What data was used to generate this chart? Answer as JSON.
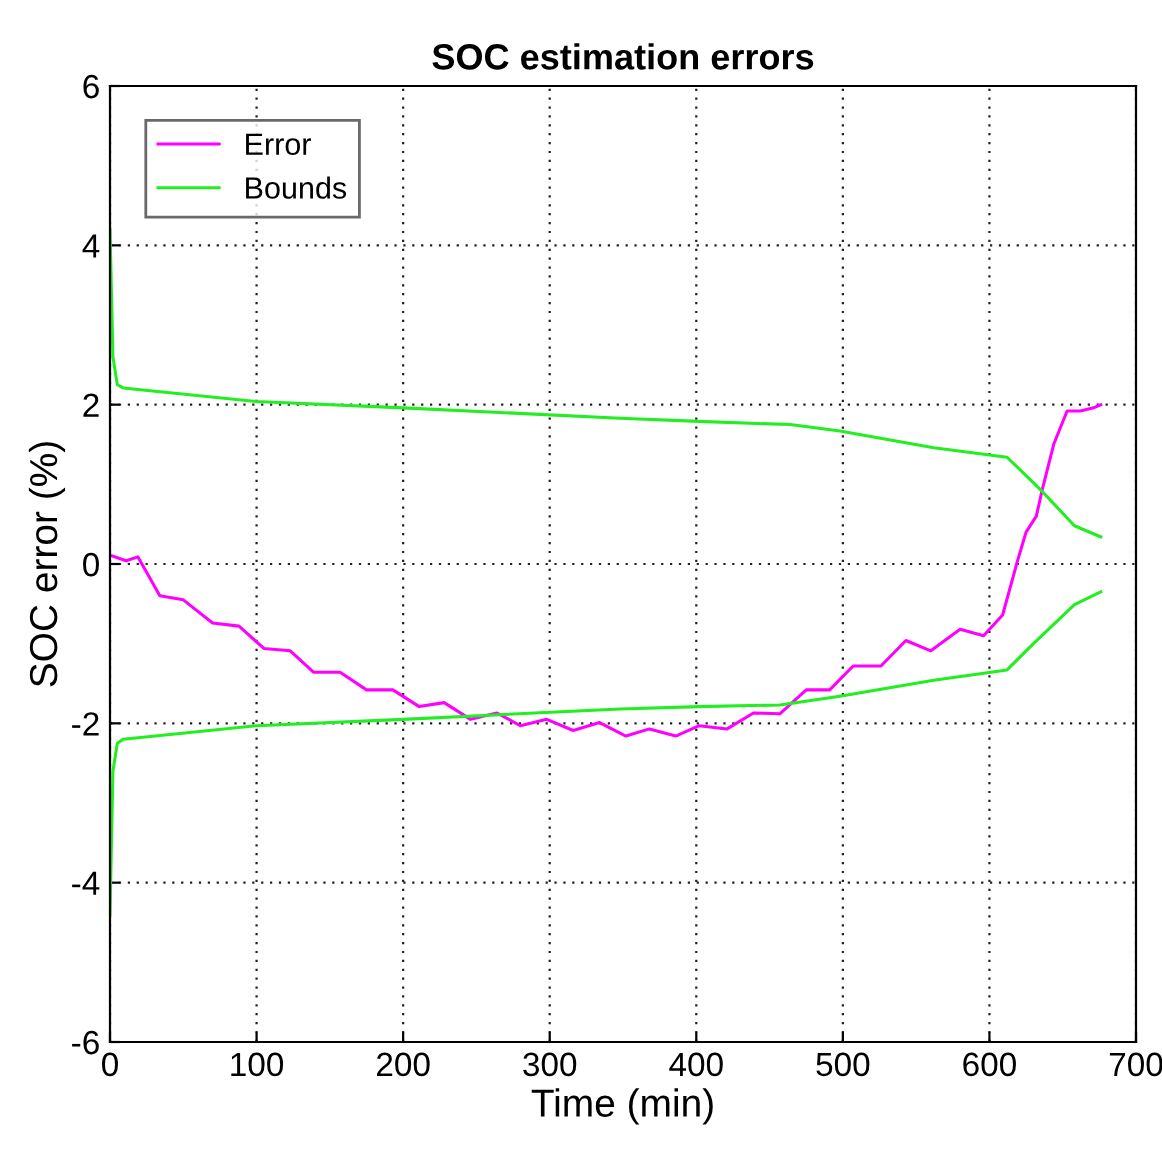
{
  "chart_data": {
    "type": "line",
    "title": "SOC estimation errors",
    "xlabel": "Time (min)",
    "ylabel": "SOC error (%)",
    "xlim": [
      0,
      700
    ],
    "xticks": [
      0,
      100,
      200,
      300,
      400,
      500,
      600,
      700
    ],
    "ylim": [
      -6,
      6
    ],
    "yticks": [
      -6,
      -4,
      -2,
      0,
      2,
      4,
      6
    ],
    "grid": true,
    "legend": "top left",
    "line_style": "solid",
    "series": [
      {
        "name": "Error",
        "color": "#ff00ff",
        "x": [
          0,
          11,
          19,
          34,
          50,
          70,
          88,
          105,
          123,
          139,
          157,
          175,
          193,
          211,
          228,
          246,
          264,
          280,
          298,
          316,
          334,
          352,
          368,
          386,
          402,
          421,
          439,
          457,
          475,
          491,
          507,
          526,
          543,
          560,
          580,
          596,
          609,
          619,
          625,
          632,
          636,
          644,
          653,
          662,
          671,
          676
        ],
        "values": [
          0.11,
          0.04,
          0.09,
          -0.4,
          -0.45,
          -0.74,
          -0.78,
          -1.06,
          -1.09,
          -1.36,
          -1.36,
          -1.58,
          -1.58,
          -1.79,
          -1.74,
          -1.95,
          -1.87,
          -2.03,
          -1.95,
          -2.09,
          -1.99,
          -2.16,
          -2.07,
          -2.16,
          -2.03,
          -2.07,
          -1.87,
          -1.88,
          -1.58,
          -1.58,
          -1.28,
          -1.28,
          -0.96,
          -1.09,
          -0.82,
          -0.9,
          -0.64,
          0.03,
          0.4,
          0.6,
          0.93,
          1.51,
          1.92,
          1.92,
          1.96,
          2.0
        ]
      },
      {
        "name": "Bounds",
        "color": "#22ee22",
        "x": [
          0,
          2,
          5,
          9,
          100,
          200,
          348,
          402,
          464,
          498,
          562,
          612,
          635,
          658,
          676
        ],
        "values": [
          4.2,
          2.6,
          2.25,
          2.21,
          2.04,
          1.96,
          1.83,
          1.79,
          1.75,
          1.67,
          1.46,
          1.34,
          0.93,
          0.48,
          0.34
        ]
      },
      {
        "color": "#22ee22",
        "x": [
          0,
          2,
          5,
          9,
          100,
          200,
          348,
          402,
          457,
          498,
          562,
          612,
          630,
          658,
          676
        ],
        "values": [
          -4.4,
          -2.6,
          -2.25,
          -2.2,
          -2.03,
          -1.95,
          -1.82,
          -1.79,
          -1.77,
          -1.66,
          -1.46,
          -1.33,
          -1.0,
          -0.51,
          -0.35
        ]
      }
    ]
  }
}
